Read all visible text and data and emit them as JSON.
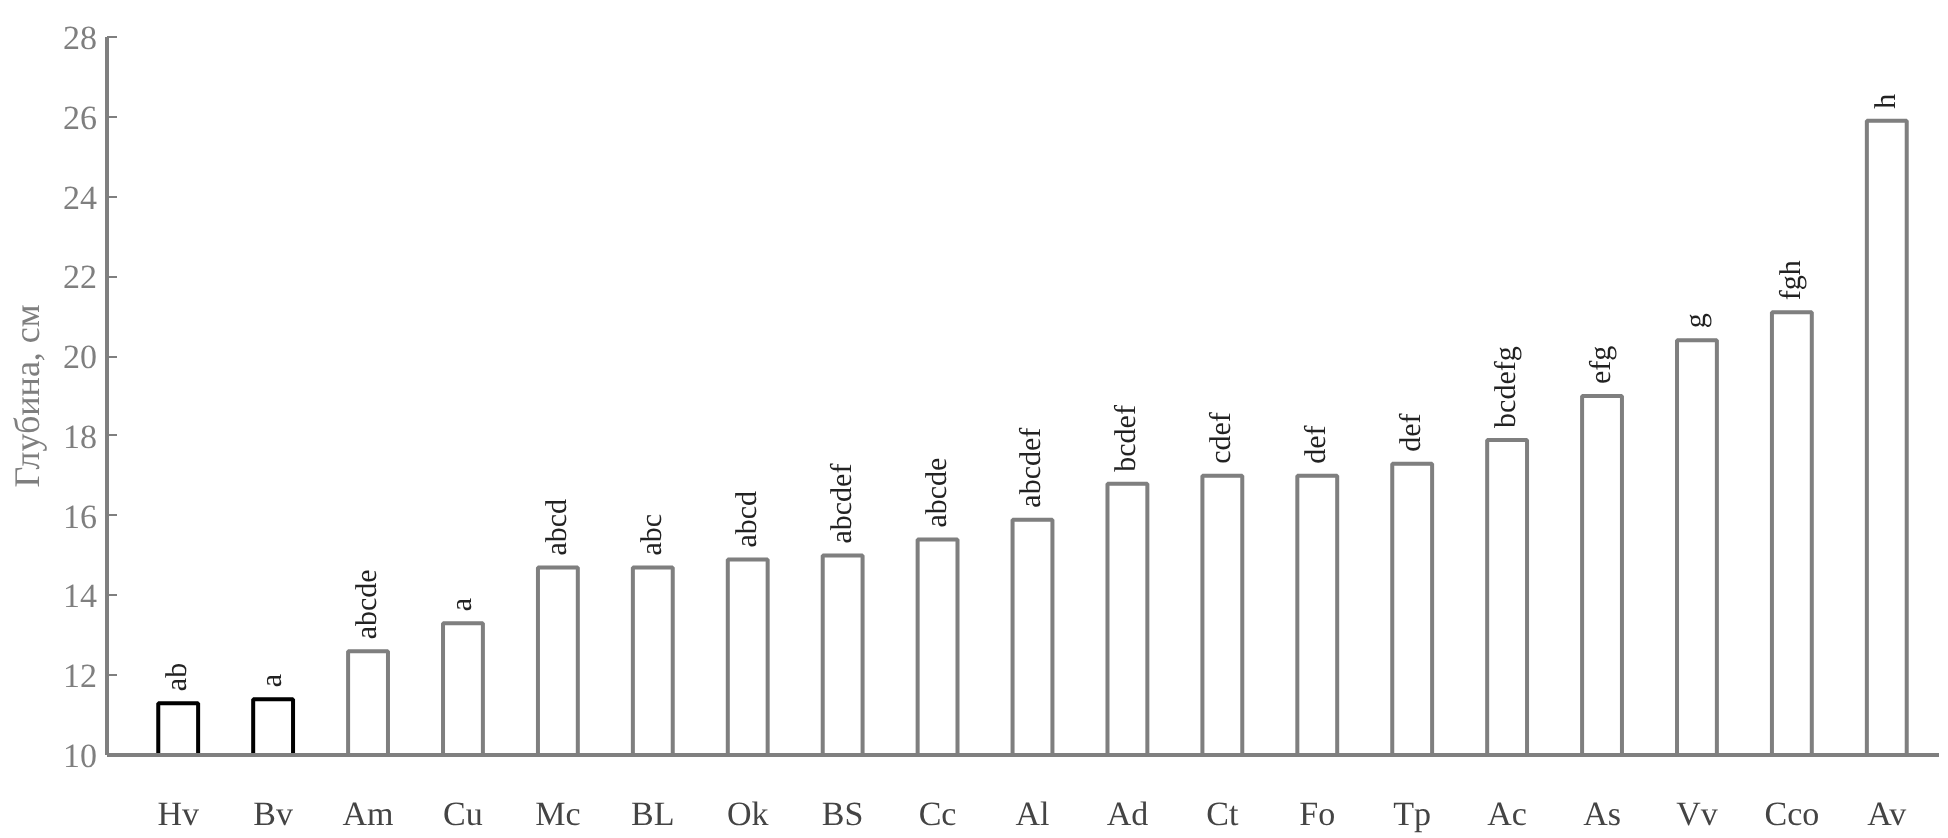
{
  "chart_data": {
    "type": "bar",
    "ylabel": "Глубина, см",
    "categories": [
      "Hv",
      "Bv",
      "Am",
      "Cu",
      "Mc",
      "BL",
      "Ok",
      "BS",
      "Cc",
      "Al",
      "Ad",
      "Ct",
      "Fo",
      "Tp",
      "Ac",
      "As",
      "Vv",
      "Cco",
      "Av"
    ],
    "values": [
      11.3,
      11.4,
      12.6,
      13.3,
      14.7,
      14.7,
      14.9,
      15.0,
      15.4,
      15.9,
      16.8,
      17.0,
      17.0,
      17.3,
      17.9,
      19.0,
      20.4,
      21.1,
      25.9
    ],
    "value_labels": [
      "ab",
      "a",
      "abcde",
      "a",
      "abcd",
      "abc",
      "abcd",
      "abcdef",
      "abcde",
      "abcdef",
      "bcdef",
      "cdef",
      "def",
      "def",
      "bcdefg",
      "efg",
      "g",
      "fgh",
      "h"
    ],
    "colors": [
      "#000000",
      "#000000",
      "#7f7f7f",
      "#7f7f7f",
      "#7f7f7f",
      "#7f7f7f",
      "#7f7f7f",
      "#7f7f7f",
      "#7f7f7f",
      "#7f7f7f",
      "#7f7f7f",
      "#7f7f7f",
      "#7f7f7f",
      "#7f7f7f",
      "#7f7f7f",
      "#7f7f7f",
      "#7f7f7f",
      "#7f7f7f",
      "#7f7f7f"
    ],
    "ylim": [
      10,
      28
    ],
    "yticks": [
      10,
      12,
      14,
      16,
      18,
      20,
      22,
      24,
      26,
      28
    ]
  }
}
